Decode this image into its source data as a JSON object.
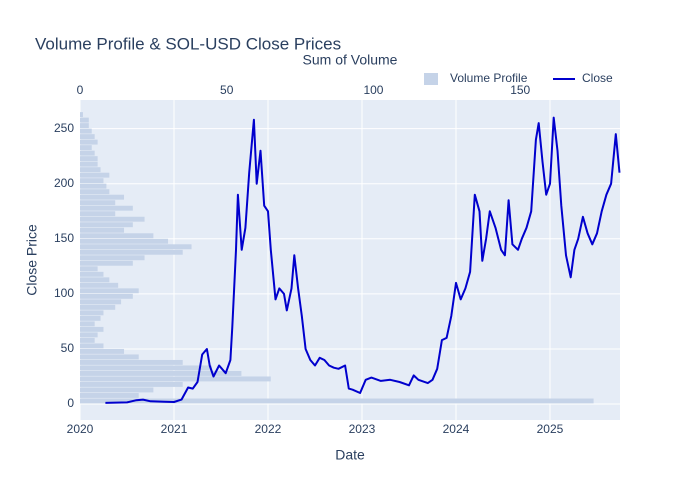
{
  "chart_data": [
    {
      "type": "histogram",
      "orientation": "horizontal",
      "title": "Volume Profile & SOL-USD Close Prices",
      "xlabel": "Sum of Volume",
      "name": "Volume Profile",
      "color": "#c5d3e8",
      "xlim": [
        0,
        184
      ],
      "xticks": [
        0,
        50,
        100,
        150
      ],
      "bins": [
        0,
        5,
        10,
        15,
        20,
        25,
        30,
        35,
        40,
        45,
        50,
        55,
        60,
        65,
        70,
        75,
        80,
        85,
        90,
        95,
        100,
        105,
        110,
        115,
        120,
        125,
        130,
        135,
        140,
        145,
        150,
        155,
        160,
        165,
        170,
        175,
        180,
        185,
        190,
        195,
        200,
        205,
        210,
        215,
        220,
        225,
        230,
        235,
        240,
        245,
        250,
        255,
        260,
        265
      ],
      "values": [
        175,
        20,
        25,
        35,
        65,
        55,
        45,
        35,
        20,
        15,
        8,
        5,
        6,
        8,
        5,
        7,
        8,
        12,
        14,
        18,
        20,
        13,
        10,
        8,
        6,
        18,
        22,
        35,
        38,
        30,
        25,
        15,
        18,
        22,
        12,
        18,
        12,
        15,
        10,
        9,
        8,
        10,
        7,
        6,
        6,
        5,
        4,
        6,
        5,
        4,
        3,
        3,
        1
      ]
    },
    {
      "type": "line",
      "xlabel": "Date",
      "ylabel": "Close Price",
      "xlim": [
        2020,
        2025.745
      ],
      "xticks": [
        2020,
        2021,
        2022,
        2023,
        2024,
        2025
      ],
      "ylim": [
        -14.5,
        276
      ],
      "yticks": [
        0,
        50,
        100,
        150,
        200,
        250
      ],
      "grid": true,
      "legend": "top-right",
      "series": [
        {
          "name": "Close",
          "color": "#0000cd",
          "x": [
            2020.27,
            2020.5,
            2020.6,
            2020.67,
            2020.75,
            2020.9,
            2021.0,
            2021.08,
            2021.15,
            2021.2,
            2021.25,
            2021.3,
            2021.35,
            2021.38,
            2021.42,
            2021.48,
            2021.55,
            2021.6,
            2021.62,
            2021.66,
            2021.68,
            2021.72,
            2021.76,
            2021.8,
            2021.85,
            2021.88,
            2021.92,
            2021.96,
            2022.0,
            2022.03,
            2022.08,
            2022.12,
            2022.17,
            2022.2,
            2022.25,
            2022.28,
            2022.32,
            2022.36,
            2022.4,
            2022.45,
            2022.5,
            2022.55,
            2022.6,
            2022.65,
            2022.7,
            2022.75,
            2022.82,
            2022.86,
            2022.9,
            2022.98,
            2023.04,
            2023.1,
            2023.2,
            2023.3,
            2023.4,
            2023.5,
            2023.55,
            2023.6,
            2023.7,
            2023.75,
            2023.8,
            2023.85,
            2023.9,
            2023.95,
            2024.0,
            2024.05,
            2024.1,
            2024.15,
            2024.2,
            2024.25,
            2024.28,
            2024.32,
            2024.36,
            2024.42,
            2024.48,
            2024.52,
            2024.56,
            2024.6,
            2024.66,
            2024.7,
            2024.75,
            2024.8,
            2024.85,
            2024.88,
            2024.92,
            2024.96,
            2025.0,
            2025.04,
            2025.08,
            2025.12,
            2025.17,
            2025.22,
            2025.26,
            2025.3,
            2025.35,
            2025.4,
            2025.45,
            2025.5,
            2025.55,
            2025.6,
            2025.65,
            2025.7,
            2025.74
          ],
          "values": [
            1,
            1.5,
            3.5,
            4,
            2.5,
            2,
            1.8,
            4,
            15,
            14,
            20,
            45,
            50,
            35,
            25,
            35,
            28,
            40,
            70,
            140,
            190,
            140,
            160,
            210,
            258,
            200,
            230,
            180,
            175,
            140,
            95,
            105,
            100,
            85,
            105,
            135,
            105,
            80,
            50,
            40,
            35,
            42,
            40,
            35,
            33,
            32,
            35,
            14,
            13,
            10,
            22,
            24,
            21,
            22,
            20,
            17,
            26,
            22,
            19,
            22,
            32,
            58,
            60,
            80,
            110,
            95,
            105,
            120,
            190,
            175,
            130,
            150,
            175,
            160,
            140,
            135,
            185,
            145,
            140,
            150,
            160,
            175,
            240,
            255,
            220,
            190,
            200,
            260,
            230,
            180,
            135,
            115,
            140,
            150,
            170,
            155,
            145,
            155,
            175,
            190,
            200,
            245,
            210
          ]
        }
      ]
    }
  ]
}
